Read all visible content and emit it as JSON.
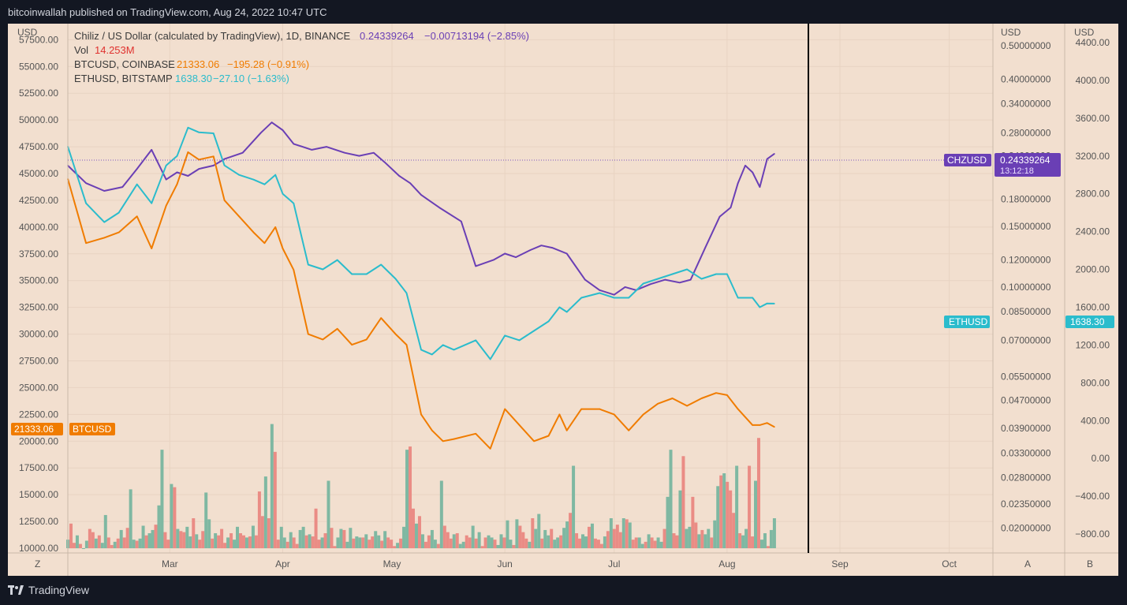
{
  "header": {
    "published": "bitcoinwallah published on TradingView.com, Aug 24, 2022 10:47 UTC"
  },
  "footer": {
    "brand": "TradingView"
  },
  "legend": {
    "chz": {
      "label": "Chiliz / US Dollar (calculated by TradingView), 1D, BINANCE",
      "value": "0.24339264",
      "change": "−0.00713194 (−2.85%)"
    },
    "vol": {
      "label": "Vol",
      "value": "14.253M"
    },
    "btc": {
      "label": "BTCUSD, COINBASE",
      "value": "21333.06",
      "change": "−195.28 (−0.91%)"
    },
    "eth": {
      "label": "ETHUSD, BITSTAMP",
      "value": "1638.30",
      "change": "−27.10 (−1.63%)"
    }
  },
  "axis_titles": {
    "left": "USD",
    "right_a": "USD",
    "right_b": "USD"
  },
  "bottom_buttons": {
    "z": "Z",
    "a": "A",
    "b": "B"
  },
  "tags": {
    "btc_price": "21333.06",
    "btc_name": "BTCUSD",
    "chz_name": "CHZUSD",
    "chz_price": "0.24339264",
    "chz_time": "13:12:18",
    "eth_name": "ETHUSD",
    "eth_price": "1638.30"
  },
  "colors": {
    "background": "#131722",
    "chart_bg": "#f2dfcf",
    "axis_text": "#555555",
    "chz": "#6a3fb5",
    "btc": "#f07c00",
    "eth": "#2bbccc",
    "vol_up": "#7fb8a2",
    "vol_down": "#ea8c85",
    "vol_value": "#e0312e",
    "crosshair": "#000000"
  },
  "chart_data": {
    "type": "line",
    "x_ticks": [
      "Mar",
      "Apr",
      "May",
      "Jun",
      "Jul",
      "Aug",
      "Sep",
      "Oct"
    ],
    "x_tick_days": [
      28,
      59,
      89,
      120,
      150,
      181,
      212,
      242
    ],
    "x_range": [
      0,
      254
    ],
    "left_axis": {
      "ylim": [
        10000,
        59000
      ],
      "ticks": [
        "57500.00",
        "55000.00",
        "52500.00",
        "50000.00",
        "47500.00",
        "45000.00",
        "42500.00",
        "40000.00",
        "37500.00",
        "35000.00",
        "32500.00",
        "30000.00",
        "27500.00",
        "25000.00",
        "22500.00",
        "20000.00",
        "17500.00",
        "15000.00",
        "12500.00",
        "10000.00"
      ]
    },
    "right_axis_a": {
      "scale": "log",
      "ticks": [
        "0.50000000",
        "0.40000000",
        "0.34000000",
        "0.28000000",
        "0.24000000",
        "0.18000000",
        "0.15000000",
        "0.12000000",
        "0.10000000",
        "0.08500000",
        "0.07000000",
        "0.05500000",
        "0.04700000",
        "0.03900000",
        "0.03300000",
        "0.02800000",
        "0.02350000",
        "0.02000000"
      ]
    },
    "right_axis_b": {
      "ylim": [
        -1000,
        4600
      ],
      "ticks": [
        "4400.00",
        "4000.00",
        "3600.00",
        "3200.00",
        "2800.00",
        "2400.00",
        "2000.00",
        "1600.00",
        "1200.00",
        "800.00",
        "400.00",
        "0.00",
        "−400.00",
        "−800.00"
      ]
    },
    "series": [
      {
        "name": "Chiliz / US Dollar (calculated by TradingView), 1D, BINANCE",
        "axis": "a",
        "days": [
          0,
          5,
          10,
          15,
          19,
          23,
          27,
          30,
          33,
          36,
          40,
          43,
          48,
          53,
          56,
          59,
          62,
          67,
          71,
          76,
          80,
          84,
          87,
          91,
          94,
          97,
          102,
          108,
          112,
          117,
          120,
          123,
          127,
          130,
          133,
          137,
          142,
          146,
          150,
          153,
          156,
          160,
          164,
          168,
          171,
          175,
          179,
          182,
          184,
          186,
          188,
          190,
          192,
          194
        ],
        "values": [
          0.225,
          0.2,
          0.19,
          0.195,
          0.22,
          0.25,
          0.205,
          0.215,
          0.21,
          0.22,
          0.225,
          0.235,
          0.245,
          0.28,
          0.3,
          0.285,
          0.26,
          0.25,
          0.255,
          0.245,
          0.24,
          0.245,
          0.23,
          0.21,
          0.2,
          0.185,
          0.17,
          0.155,
          0.115,
          0.12,
          0.125,
          0.122,
          0.128,
          0.132,
          0.13,
          0.125,
          0.105,
          0.098,
          0.095,
          0.1,
          0.098,
          0.102,
          0.105,
          0.103,
          0.105,
          0.13,
          0.16,
          0.17,
          0.2,
          0.225,
          0.215,
          0.195,
          0.235,
          0.2434
        ]
      },
      {
        "name": "BTCUSD, COINBASE",
        "axis": "left",
        "days": [
          0,
          5,
          10,
          14,
          19,
          23,
          27,
          30,
          33,
          36,
          40,
          43,
          47,
          51,
          54,
          57,
          59,
          62,
          66,
          70,
          74,
          78,
          82,
          86,
          90,
          93,
          97,
          100,
          103,
          106,
          112,
          116,
          120,
          124,
          128,
          132,
          135,
          137,
          141,
          146,
          150,
          154,
          158,
          162,
          166,
          170,
          174,
          178,
          181,
          184,
          188,
          190,
          192,
          194
        ],
        "values": [
          44500,
          38500,
          39000,
          39500,
          41000,
          38000,
          42000,
          44000,
          47000,
          46300,
          46600,
          42500,
          41000,
          39500,
          38500,
          40000,
          38000,
          36000,
          30000,
          29500,
          30500,
          29000,
          29500,
          31500,
          30000,
          29000,
          22500,
          21000,
          20000,
          20200,
          20700,
          19300,
          23000,
          21500,
          20000,
          20500,
          22500,
          21000,
          23000,
          23000,
          22500,
          21000,
          22500,
          23500,
          24000,
          23300,
          24000,
          24500,
          24300,
          23000,
          21500,
          21500,
          21700,
          21333
        ]
      },
      {
        "name": "ETHUSD, BITSTAMP",
        "axis": "b",
        "days": [
          0,
          5,
          10,
          14,
          19,
          23,
          27,
          30,
          33,
          36,
          40,
          43,
          47,
          51,
          54,
          57,
          59,
          62,
          66,
          70,
          74,
          78,
          82,
          86,
          90,
          93,
          97,
          100,
          103,
          106,
          112,
          116,
          120,
          124,
          128,
          132,
          135,
          137,
          141,
          146,
          150,
          154,
          158,
          162,
          166,
          170,
          174,
          178,
          181,
          184,
          188,
          190,
          192,
          194
        ],
        "values": [
          3300,
          2700,
          2500,
          2600,
          2900,
          2700,
          3100,
          3200,
          3500,
          3450,
          3440,
          3100,
          3000,
          2950,
          2900,
          3000,
          2800,
          2700,
          2050,
          2000,
          2100,
          1950,
          1950,
          2050,
          1900,
          1750,
          1150,
          1100,
          1200,
          1150,
          1250,
          1050,
          1300,
          1250,
          1350,
          1450,
          1600,
          1550,
          1700,
          1750,
          1700,
          1700,
          1850,
          1900,
          1950,
          2000,
          1900,
          1950,
          1950,
          1700,
          1700,
          1600,
          1640,
          1638
        ]
      }
    ],
    "volume": {
      "axis": "left",
      "scale_base": 10000,
      "values": [
        10800,
        12300,
        10500,
        11200,
        10400,
        10000,
        10700,
        11800,
        11500,
        10900,
        11200,
        10500,
        13100,
        11000,
        10300,
        10600,
        10900,
        11700,
        11000,
        11900,
        15500,
        10800,
        10700,
        10900,
        12100,
        11200,
        11400,
        11700,
        12200,
        14000,
        19200,
        11500,
        10800,
        16000,
        15700,
        11800,
        11600,
        11500,
        12000,
        11100,
        12800,
        11300,
        10800,
        11600,
        15200,
        12700,
        10900,
        11400,
        11200,
        11800,
        10500,
        11000,
        11400,
        10800,
        12000,
        11400,
        11200,
        11000,
        11100,
        12100,
        11200,
        15300,
        13000,
        16700,
        12800,
        21600,
        19000,
        10800,
        12000,
        11000,
        10600,
        11500,
        11000,
        10400,
        11700,
        12000,
        11200,
        11300,
        11100,
        13700,
        10800,
        11000,
        11400,
        16300,
        11900,
        10200,
        11000,
        11800,
        11700,
        10600,
        11900,
        10900,
        11100,
        11000,
        11000,
        11300,
        10800,
        11100,
        11600,
        11200,
        10700,
        11600,
        11000,
        10800,
        10200,
        10500,
        10900,
        12000,
        19200,
        19500,
        13700,
        12300,
        13000,
        11300,
        10600,
        11200,
        11700,
        10800,
        10400,
        16300,
        12100,
        11500,
        10900,
        11300,
        11400,
        10400,
        10600,
        11200,
        11000,
        12100,
        10900,
        11500,
        10200,
        11000,
        11200,
        11000,
        10800,
        10300,
        11300,
        11000,
        12600,
        10800,
        10300,
        12700,
        12100,
        11500,
        10900,
        10600,
        12800,
        11800,
        13200,
        10900,
        11700,
        11200,
        11800,
        10800,
        11000,
        11200,
        11900,
        12500,
        13300,
        17700,
        11400,
        10900,
        11300,
        11100,
        12000,
        12300,
        10900,
        10800,
        10400,
        11100,
        11600,
        12800,
        11800,
        12200,
        11500,
        12800,
        12700,
        12400,
        10800,
        11000,
        11000,
        10400,
        10600,
        11300,
        11000,
        10700,
        11000,
        10600,
        11800,
        14800,
        19200,
        11400,
        11200,
        15400,
        18600,
        11800,
        12000,
        14800,
        12400,
        11300,
        11700,
        11300,
        11800,
        11000,
        12600,
        15800,
        16800,
        17000,
        16200,
        15400,
        13300,
        17700,
        11400,
        11200,
        11800,
        17700,
        11100,
        16300,
        20300,
        10800,
        11400,
        10200,
        11700,
        12800
      ]
    }
  }
}
